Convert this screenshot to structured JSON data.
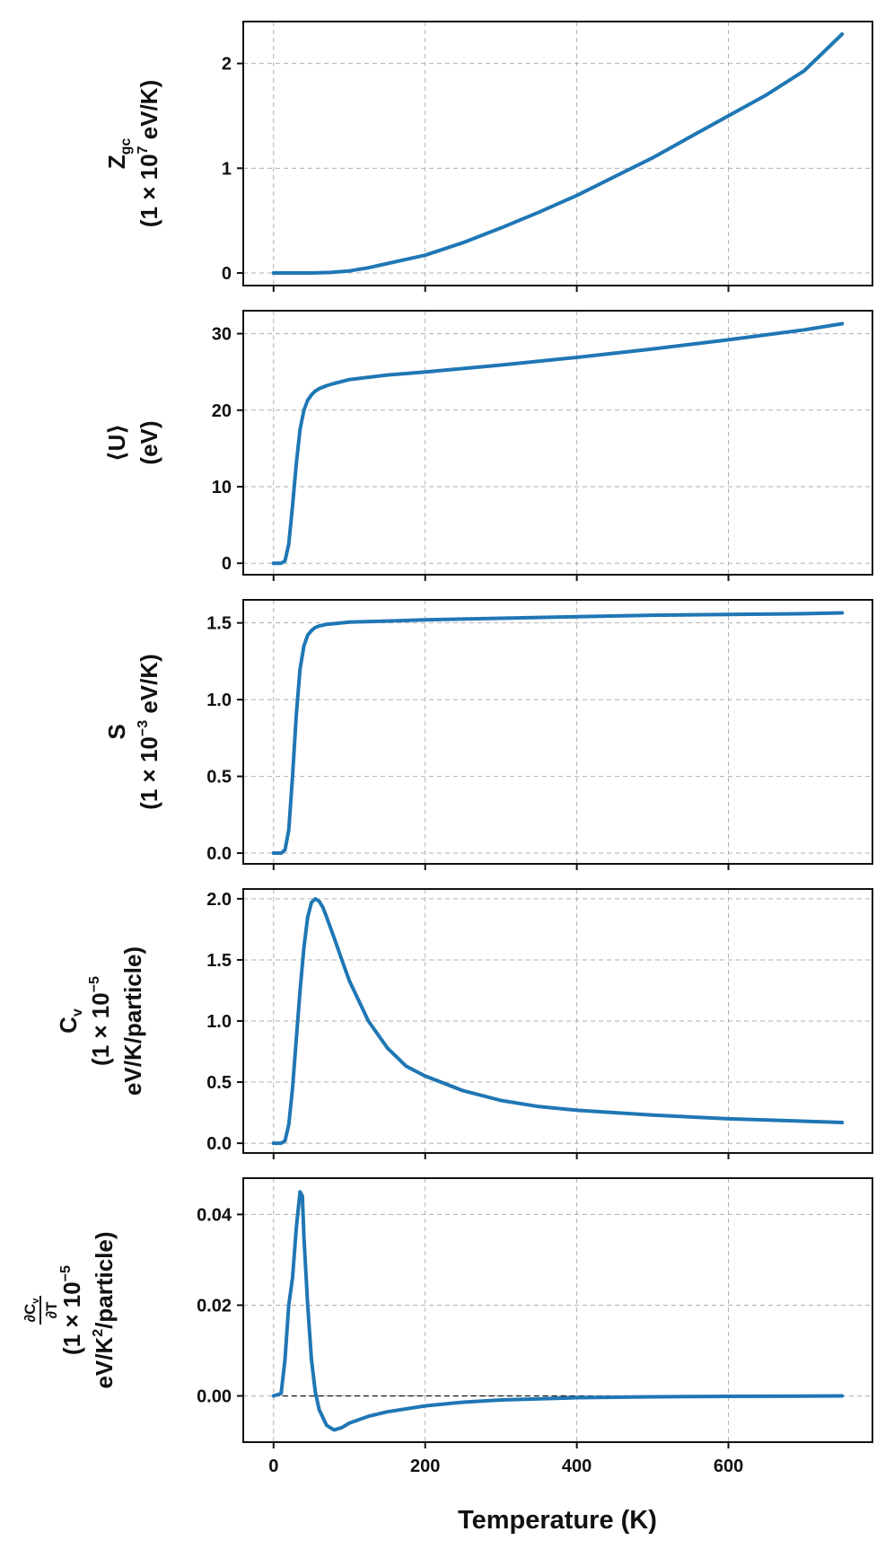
{
  "chart_data": [
    {
      "type": "line",
      "ylabel_line1": "Z",
      "ylabel_line1_sub": "gc",
      "ylabel_line2": "(1 × 10",
      "ylabel_line2_sup": "7",
      "ylabel_line2_end": " eV/K)",
      "xlim": [
        -40,
        790
      ],
      "ylim": [
        -0.12,
        2.4
      ],
      "yticks": [
        0,
        1,
        2
      ],
      "ytick_labels": [
        "0",
        "1",
        "2"
      ],
      "grid": true,
      "color": "#1f77b4",
      "x": [
        0,
        50,
        75,
        100,
        125,
        150,
        175,
        200,
        250,
        300,
        350,
        400,
        450,
        500,
        550,
        600,
        650,
        700,
        750
      ],
      "y": [
        0,
        0,
        0.005,
        0.02,
        0.05,
        0.09,
        0.13,
        0.17,
        0.29,
        0.43,
        0.58,
        0.74,
        0.92,
        1.1,
        1.3,
        1.5,
        1.7,
        1.93,
        2.28
      ]
    },
    {
      "type": "line",
      "ylabel_line1": "⟨U⟩",
      "ylabel_line2": "(eV)",
      "xlim": [
        -40,
        790
      ],
      "ylim": [
        -1.5,
        33
      ],
      "yticks": [
        0,
        10,
        20,
        30
      ],
      "ytick_labels": [
        "0",
        "10",
        "20",
        "30"
      ],
      "grid": true,
      "color": "#1f77b4",
      "x": [
        0,
        10,
        15,
        20,
        25,
        30,
        35,
        40,
        45,
        50,
        55,
        60,
        70,
        80,
        100,
        150,
        200,
        300,
        400,
        500,
        600,
        700,
        750
      ],
      "y": [
        0,
        0,
        0.3,
        2.5,
        7.5,
        13,
        17.5,
        20,
        21.3,
        22,
        22.5,
        22.8,
        23.2,
        23.5,
        24,
        24.6,
        25,
        25.9,
        26.9,
        28,
        29.2,
        30.5,
        31.3
      ]
    },
    {
      "type": "line",
      "ylabel_line1": "S",
      "ylabel_line2": "(1 × 10",
      "ylabel_line2_sup": "−3",
      "ylabel_line2_end": " eV/K)",
      "xlim": [
        -40,
        790
      ],
      "ylim": [
        -0.07,
        1.65
      ],
      "yticks": [
        0,
        0.5,
        1.0,
        1.5
      ],
      "ytick_labels": [
        "0.0",
        "0.5",
        "1.0",
        "1.5"
      ],
      "grid": true,
      "color": "#1f77b4",
      "x": [
        0,
        10,
        15,
        20,
        25,
        30,
        35,
        40,
        45,
        50,
        55,
        60,
        70,
        80,
        100,
        150,
        200,
        300,
        400,
        500,
        600,
        700,
        750
      ],
      "y": [
        0,
        0,
        0.02,
        0.15,
        0.5,
        0.9,
        1.2,
        1.35,
        1.42,
        1.45,
        1.47,
        1.48,
        1.49,
        1.495,
        1.505,
        1.512,
        1.52,
        1.53,
        1.54,
        1.55,
        1.555,
        1.56,
        1.565
      ]
    },
    {
      "type": "line",
      "ylabel_line1": "C",
      "ylabel_line1_sub": "v",
      "ylabel_line2": "(1 × 10",
      "ylabel_line2_sup": "−5",
      "ylabel_line3": "eV/K/particle)",
      "xlim": [
        -40,
        790
      ],
      "ylim": [
        -0.08,
        2.08
      ],
      "yticks": [
        0,
        0.5,
        1.0,
        1.5,
        2.0
      ],
      "ytick_labels": [
        "0.0",
        "0.5",
        "1.0",
        "1.5",
        "2.0"
      ],
      "grid": true,
      "color": "#1f77b4",
      "x": [
        0,
        10,
        15,
        20,
        25,
        30,
        35,
        40,
        45,
        50,
        55,
        60,
        65,
        70,
        80,
        90,
        100,
        125,
        150,
        175,
        200,
        250,
        300,
        350,
        400,
        500,
        600,
        700,
        750
      ],
      "y": [
        0,
        0,
        0.02,
        0.15,
        0.45,
        0.85,
        1.25,
        1.6,
        1.85,
        1.97,
        2.0,
        1.98,
        1.93,
        1.85,
        1.68,
        1.5,
        1.33,
        1.0,
        0.78,
        0.63,
        0.55,
        0.43,
        0.35,
        0.3,
        0.27,
        0.23,
        0.2,
        0.18,
        0.17
      ]
    },
    {
      "type": "line",
      "ylabel_frac_num": "∂C",
      "ylabel_frac_num_sub": "v",
      "ylabel_frac_den": "∂T",
      "ylabel_line2": "(1 × 10",
      "ylabel_line2_sup": "−5",
      "ylabel_line3": "eV/K",
      "ylabel_line3_sup": "2",
      "ylabel_line3_end": "/particle)",
      "xlim": [
        -40,
        790
      ],
      "ylim": [
        -0.0102,
        0.048
      ],
      "yticks": [
        0,
        0.02,
        0.04
      ],
      "ytick_labels": [
        "0.00",
        "0.02",
        "0.04"
      ],
      "grid": true,
      "zero_line": true,
      "color": "#1f77b4",
      "x": [
        0,
        10,
        15,
        20,
        25,
        30,
        35,
        38,
        40,
        45,
        50,
        55,
        60,
        70,
        80,
        90,
        100,
        125,
        150,
        200,
        250,
        300,
        400,
        500,
        600,
        750
      ],
      "y": [
        0,
        0.0005,
        0.008,
        0.02,
        0.026,
        0.037,
        0.045,
        0.044,
        0.035,
        0.02,
        0.008,
        0.001,
        -0.003,
        -0.0065,
        -0.0075,
        -0.007,
        -0.006,
        -0.0045,
        -0.0035,
        -0.0022,
        -0.0014,
        -0.0009,
        -0.0004,
        -0.0002,
        -0.0001,
        0
      ]
    }
  ],
  "xaxis": {
    "label": "Temperature (K)",
    "ticks": [
      0,
      200,
      400,
      600
    ],
    "tick_labels": [
      "0",
      "200",
      "400",
      "600"
    ]
  }
}
